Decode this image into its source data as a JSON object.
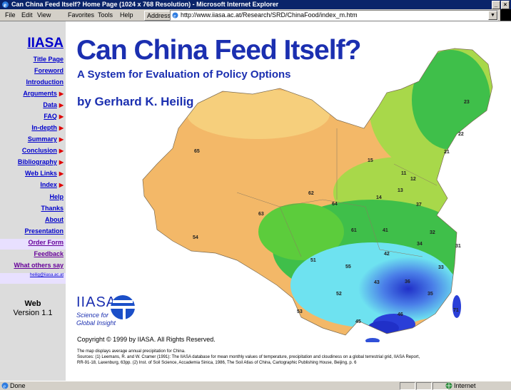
{
  "window": {
    "title": "Can China Feed Itself? Home Page (1024 x 768 Resolution) - Microsoft Internet Explorer",
    "controls": [
      "_",
      "×"
    ]
  },
  "menubar": {
    "items": [
      "File",
      "Edit",
      "View",
      "Favorites",
      "Tools",
      "Help"
    ],
    "address_label": "Address",
    "address_url": "http://www.iiasa.ac.at/Research/SRD/ChinaFood/index_m.htm"
  },
  "sidebar": {
    "brand": "IIASA",
    "items": [
      {
        "label": "Title Page",
        "arrow": false
      },
      {
        "label": "Foreword",
        "arrow": false
      },
      {
        "label": "Introduction",
        "arrow": false
      },
      {
        "label": "Arguments",
        "arrow": true
      },
      {
        "label": "Data",
        "arrow": true
      },
      {
        "label": "FAQ",
        "arrow": true
      },
      {
        "label": "In-depth",
        "arrow": true
      },
      {
        "label": "Summary",
        "arrow": true
      },
      {
        "label": "Conclusion",
        "arrow": true
      },
      {
        "label": "Bibliography",
        "arrow": true
      },
      {
        "label": "Web Links",
        "arrow": true
      },
      {
        "label": "Index",
        "arrow": true
      },
      {
        "label": "Help",
        "arrow": false
      },
      {
        "label": "Thanks",
        "arrow": false
      },
      {
        "label": "About",
        "arrow": false
      },
      {
        "label": "Presentation",
        "arrow": false
      },
      {
        "label": "Order Form",
        "arrow": false
      },
      {
        "label": "Feedback",
        "arrow": false
      },
      {
        "label": "What others say",
        "arrow": false
      },
      {
        "label": "heilig@iiasa.ac.at",
        "arrow": false
      }
    ],
    "version_line1": "Web",
    "version_line2": "Version 1.1",
    "arrow_glyph": "▶"
  },
  "main": {
    "title": "Can China Feed Itself?",
    "subtitle": "A System for Evaluation of Policy Options",
    "byline": "by Gerhard K. Heilig",
    "logo": {
      "name": "IIASA",
      "line1": "Science for",
      "line2": "Global Insight"
    },
    "copyright": "Copyright © 1999 by IIASA. All Rights Reserved.",
    "note_line1": "The map displays average annual precipitation for China.",
    "note_line2": "Sources: (1) Leemans, R. and W. Cramer (1991): The IIASA database for mean monthly values of temperature, precipitation and cloudiness on a global terrestrial grid, IIASA Report,",
    "note_line3": "RR-91-18, Laxenburg, 63pp.  (2) Inst. of Soil Science, Accademia Sinica, 1986, The Soil Atlas of China, Cartographic Publishing House, Beijing, p. 6"
  },
  "map": {
    "region_labels": [
      "23",
      "22",
      "21",
      "65",
      "15",
      "11",
      "12",
      "13",
      "14",
      "62",
      "64",
      "63",
      "37",
      "61",
      "41",
      "32",
      "34",
      "31",
      "42",
      "51",
      "55",
      "54",
      "33",
      "43",
      "36",
      "52",
      "35",
      "53",
      "45",
      "46",
      "71"
    ],
    "colors": {
      "arid": "#f3b868",
      "dry": "#f6cf7c",
      "semi": "#a8d84a",
      "moist": "#3fbf4a",
      "wet": "#6ee2f0",
      "very_wet": "#2a3fd8"
    }
  },
  "statusbar": {
    "text": "Done",
    "zone": "Internet"
  }
}
